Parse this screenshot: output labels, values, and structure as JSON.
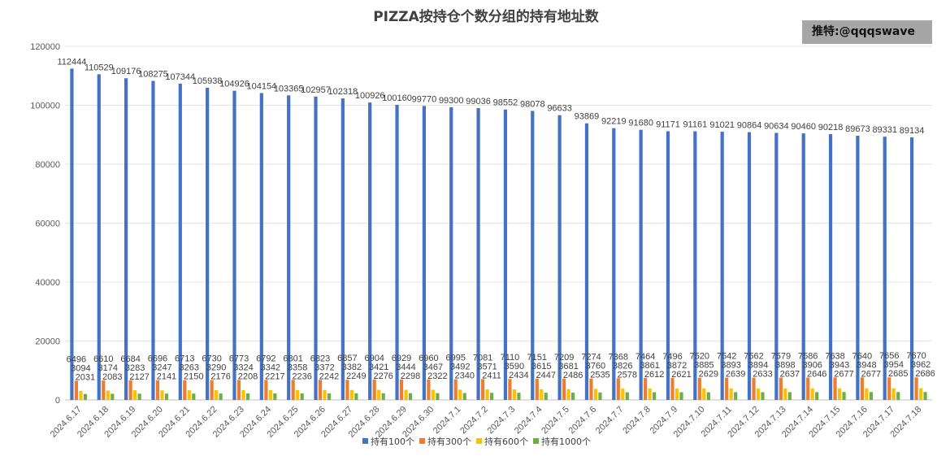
{
  "watermark": "推特:@qqqswave",
  "chart_data": {
    "type": "bar",
    "title": "PIZZA按持仓个数分组的持有地址数",
    "xlabel": "",
    "ylabel": "",
    "ylim": [
      0,
      120000
    ],
    "yticks": [
      0,
      20000,
      40000,
      60000,
      80000,
      100000,
      120000
    ],
    "grid": true,
    "legend_position": "bottom",
    "categories": [
      "2024.6.17",
      "2024.6.18",
      "2024.6.19",
      "2024.6.20",
      "2024.6.21",
      "2024.6.22",
      "2024.6.23",
      "2024.6.24",
      "2024.6.25",
      "2024.6.26",
      "2024.6.27",
      "2024.6.28",
      "2024.6.29",
      "2024.6.30",
      "2024.7.1",
      "2024.7.2",
      "2024.7.3",
      "2024.7.4",
      "2024.7.5",
      "2024.7.6",
      "2024.7.7",
      "2024.7.8",
      "2024.7.9",
      "2024.7.10",
      "2024.7.11",
      "2024.7.12",
      "2024.7.13",
      "2024.7.14",
      "2024.7.15",
      "2024.7.16",
      "2024.7.17",
      "2024.7.18"
    ],
    "series": [
      {
        "name": "持有100个",
        "color": "#4472c4",
        "values": [
          112444,
          110529,
          109176,
          108275,
          107344,
          105938,
          104926,
          104154,
          103365,
          102957,
          102318,
          100926,
          100160,
          99770,
          99300,
          99036,
          98552,
          98078,
          96633,
          93869,
          92219,
          91680,
          91171,
          91161,
          91021,
          90864,
          90634,
          90460,
          90218,
          89673,
          89331,
          89134
        ]
      },
      {
        "name": "持有300个",
        "color": "#ed7d31",
        "values": [
          6496,
          6610,
          6684,
          6696,
          6713,
          6730,
          6773,
          6792,
          6801,
          6823,
          6857,
          6904,
          6929,
          6960,
          6995,
          7081,
          7110,
          7151,
          7209,
          7274,
          7368,
          7464,
          7496,
          7520,
          7542,
          7562,
          7579,
          7586,
          7638,
          7640,
          7656,
          7670
        ]
      },
      {
        "name": "持有600个",
        "color": "#ffc000",
        "values": [
          3094,
          3174,
          3283,
          3247,
          3263,
          3290,
          3324,
          3342,
          3358,
          3372,
          3382,
          3421,
          3444,
          3467,
          3492,
          3571,
          3590,
          3615,
          3681,
          3760,
          3826,
          3861,
          3872,
          3885,
          3893,
          3894,
          3898,
          3906,
          3943,
          3948,
          3954,
          3962
        ]
      },
      {
        "name": "持有1000个",
        "color": "#70ad47",
        "values": [
          2031,
          2083,
          2127,
          2141,
          2150,
          2176,
          2208,
          2217,
          2236,
          2242,
          2249,
          2276,
          2298,
          2322,
          2340,
          2411,
          2434,
          2447,
          2486,
          2535,
          2578,
          2612,
          2621,
          2629,
          2639,
          2633,
          2637,
          2646,
          2677,
          2677,
          2685,
          2686
        ]
      }
    ]
  }
}
